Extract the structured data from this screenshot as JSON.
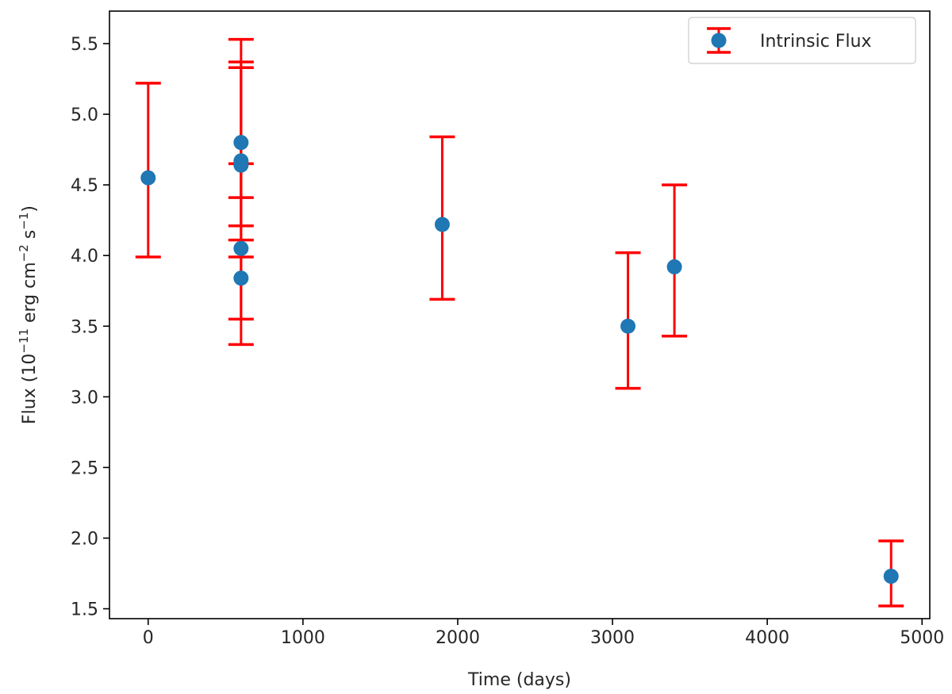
{
  "chart_data": {
    "type": "scatter",
    "title": "",
    "xlabel": "Time (days)",
    "ylabel": {
      "prefix": "Flux (10",
      "exp1": "−11",
      "middle": " erg cm",
      "exp2": "−2",
      "middle2": " s",
      "exp3": "−1",
      "suffix": ")"
    },
    "xlim": [
      -250,
      5050
    ],
    "ylim": [
      1.43,
      5.73
    ],
    "xticks": [
      0,
      1000,
      2000,
      3000,
      4000,
      5000
    ],
    "xtick_labels": [
      "0",
      "1000",
      "2000",
      "3000",
      "4000",
      "5000"
    ],
    "yticks": [
      1.5,
      2.0,
      2.5,
      3.0,
      3.5,
      4.0,
      4.5,
      5.0,
      5.5
    ],
    "ytick_labels": [
      "1.5",
      "2.0",
      "2.5",
      "3.0",
      "3.5",
      "4.0",
      "4.5",
      "5.0",
      "5.5"
    ],
    "grid": false,
    "legend": {
      "position": "top-right",
      "entries": [
        "Intrinsic Flux"
      ]
    },
    "series": [
      {
        "name": "Intrinsic Flux",
        "marker_color": "#1f77b4",
        "errorbar_color": "#ff0000",
        "points": [
          {
            "x": 0,
            "y": 4.55,
            "ylo": 3.99,
            "yhi": 5.22
          },
          {
            "x": 600,
            "y": 4.8,
            "ylo": 4.41,
            "yhi": 5.53
          },
          {
            "x": 600,
            "y": 4.67,
            "ylo": 4.21,
            "yhi": 5.37
          },
          {
            "x": 600,
            "y": 4.64,
            "ylo": 4.11,
            "yhi": 5.33
          },
          {
            "x": 600,
            "y": 4.05,
            "ylo": 3.55,
            "yhi": 4.65
          },
          {
            "x": 600,
            "y": 3.84,
            "ylo": 3.37,
            "yhi": 3.99
          },
          {
            "x": 1900,
            "y": 4.22,
            "ylo": 3.69,
            "yhi": 4.84
          },
          {
            "x": 3100,
            "y": 3.5,
            "ylo": 3.06,
            "yhi": 4.02
          },
          {
            "x": 3400,
            "y": 3.92,
            "ylo": 3.43,
            "yhi": 4.5
          },
          {
            "x": 4800,
            "y": 1.73,
            "ylo": 1.52,
            "yhi": 1.98
          }
        ]
      }
    ]
  }
}
